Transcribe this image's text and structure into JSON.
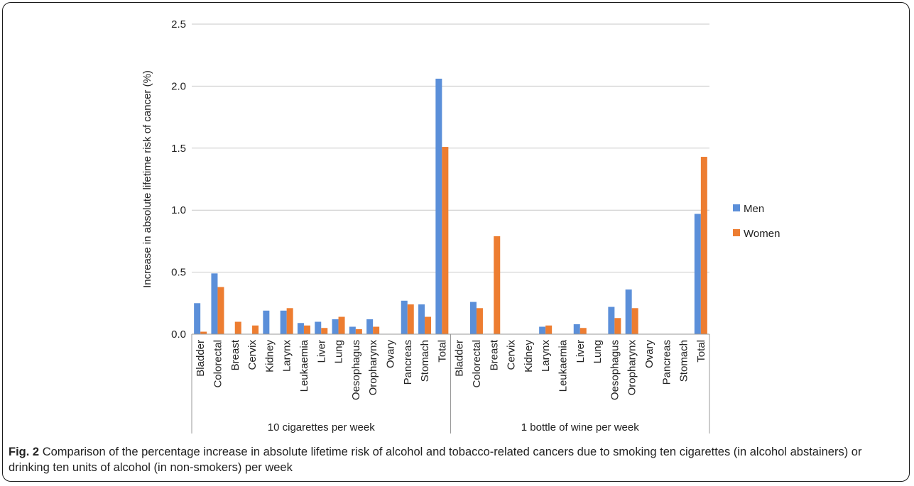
{
  "chart_data": {
    "type": "bar",
    "ylabel": "Increase in absolute lifetime risk of cancer (%)",
    "yticks": [
      "0.0",
      "0.5",
      "1.0",
      "1.5",
      "2.0",
      "2.5"
    ],
    "ylim": [
      0,
      2.5
    ],
    "grid": true,
    "legend_position": "right",
    "groups": [
      {
        "label": "10 cigarettes per week",
        "categories": [
          "Bladder",
          "Colorectal",
          "Breast",
          "Cervix",
          "Kidney",
          "Larynx",
          "Leukaemia",
          "Liver",
          "Lung",
          "Oesophagus",
          "Oropharynx",
          "Ovary",
          "Pancreas",
          "Stomach",
          "Total"
        ]
      },
      {
        "label": "1 bottle of wine per week",
        "categories": [
          "Bladder",
          "Colorectal",
          "Breast",
          "Cervix",
          "Kidney",
          "Larynx",
          "Leukaemia",
          "Liver",
          "Lung",
          "Oesophagus",
          "Oropharynx",
          "Ovary",
          "Pancreas",
          "Stomach",
          "Total"
        ]
      }
    ],
    "series": [
      {
        "name": "Men",
        "color": "#5b8fd9",
        "values": [
          [
            0.25,
            0.49,
            0,
            0,
            0.19,
            0.19,
            0.09,
            0.1,
            0.12,
            0.06,
            0.12,
            0,
            0.27,
            0.24,
            2.06
          ],
          [
            0,
            0.26,
            0,
            0,
            0,
            0.06,
            0,
            0.08,
            0,
            0.22,
            0.36,
            0,
            0,
            0,
            0.97
          ]
        ]
      },
      {
        "name": "Women",
        "color": "#ed7d31",
        "values": [
          [
            0.02,
            0.38,
            0.1,
            0.07,
            0,
            0.21,
            0.07,
            0.05,
            0.14,
            0.04,
            0.06,
            0,
            0.24,
            0.14,
            1.51
          ],
          [
            0,
            0.21,
            0.79,
            0,
            0,
            0.07,
            0,
            0.05,
            0,
            0.13,
            0.21,
            0,
            0,
            0,
            1.43
          ]
        ]
      }
    ]
  },
  "caption": {
    "fig_label": "Fig. 2",
    "text": "Comparison of the percentage increase in absolute lifetime risk of alcohol and tobacco-related cancers due to smoking ten cigarettes (in alcohol abstainers) or drinking ten units of alcohol (in non-smokers) per week"
  }
}
